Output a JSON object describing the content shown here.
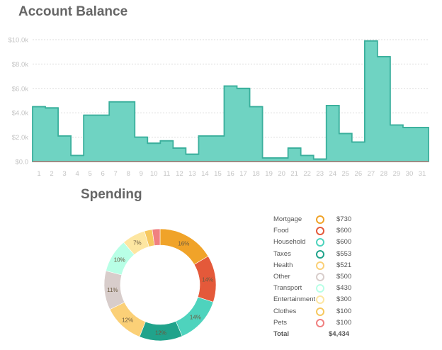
{
  "balance_title": "Account Balance",
  "spending_title": "Spending",
  "chart_data": [
    {
      "type": "area",
      "title": "Account Balance",
      "x": [
        1,
        2,
        3,
        4,
        5,
        6,
        7,
        8,
        9,
        10,
        11,
        12,
        13,
        14,
        15,
        16,
        17,
        18,
        19,
        20,
        21,
        22,
        23,
        24,
        25,
        26,
        27,
        28,
        29,
        30,
        31
      ],
      "values": [
        4500,
        4400,
        2100,
        500,
        3800,
        3800,
        4900,
        4900,
        2000,
        1500,
        1700,
        1100,
        600,
        2100,
        2100,
        6200,
        6000,
        4500,
        300,
        300,
        1100,
        500,
        200,
        4600,
        2300,
        1600,
        9900,
        8600,
        3000,
        2800,
        2800
      ],
      "y_ticks": [
        "$0.0",
        "$2.0k",
        "$4.0k",
        "$6.0k",
        "$8.0k",
        "$10.0k"
      ],
      "ylim": [
        0,
        10000
      ],
      "step": true,
      "fill_color": "#6fd3c2",
      "line_color": "#3aaf9c",
      "grid": "horizontal dotted"
    },
    {
      "type": "pie",
      "title": "Spending",
      "donut": true,
      "labels": [
        "Mortgage",
        "Food",
        "Household",
        "Taxes",
        "Health",
        "Other",
        "Transport",
        "Entertainment",
        "Clothes",
        "Pets"
      ],
      "values": [
        730,
        600,
        600,
        553,
        521,
        500,
        430,
        300,
        100,
        100
      ],
      "display_values": [
        "$730",
        "$600",
        "$600",
        "$553",
        "$521",
        "$500",
        "$430",
        "$300",
        "$100",
        "$100"
      ],
      "percent_labels": [
        "16%",
        "14%",
        "14%",
        "12%",
        "12%",
        "11%",
        "10%",
        "7%",
        "",
        ""
      ],
      "colors": [
        "#f0a329",
        "#e4593a",
        "#4ed3bd",
        "#20a38b",
        "#fbd077",
        "#d8cdcb",
        "#b8ffe6",
        "#fde6a1",
        "#f6c85f",
        "#f08080"
      ],
      "total_label": "Total",
      "total_value": "$4,434"
    }
  ]
}
